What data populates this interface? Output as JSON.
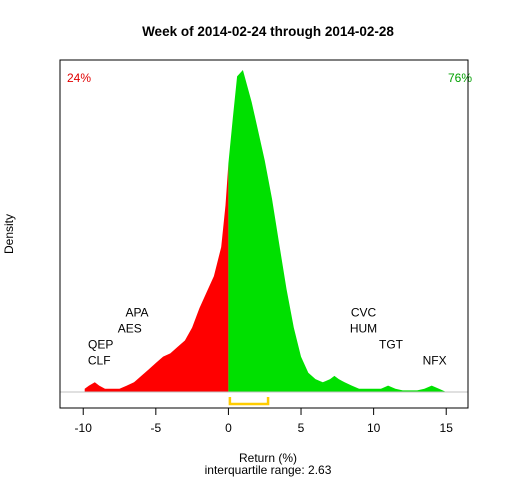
{
  "chart_data": {
    "type": "area",
    "title": "Week of 2014-02-24 through 2014-02-28",
    "xlabel": "Return (%)",
    "ylabel": "Density",
    "subtitle": "interquartile range: 2.63",
    "xlim": [
      -11.6,
      16.5
    ],
    "ylim": [
      0,
      1.06
    ],
    "x_ticks": [
      -10,
      -5,
      0,
      5,
      10,
      15
    ],
    "x_tick_labels": [
      "-10",
      "-5",
      "0",
      "5",
      "10",
      "15"
    ],
    "grid": false,
    "split_at": 0,
    "left_percent": "24%",
    "right_percent": "76%",
    "colors": {
      "negative": "#ff0000",
      "positive": "#00e000",
      "iqr": "#ffcc00",
      "baseline": "#c0c0c0"
    },
    "iqr": [
      0.1,
      2.73
    ],
    "density": {
      "x": [
        -9.9,
        -9.6,
        -9.2,
        -8.9,
        -8.5,
        -8.0,
        -7.5,
        -7.0,
        -6.5,
        -6.0,
        -5.5,
        -5.0,
        -4.5,
        -4.0,
        -3.5,
        -3.0,
        -2.5,
        -2.0,
        -1.5,
        -1.0,
        -0.5,
        -0.2,
        0.0,
        0.3,
        0.6,
        1.0,
        1.3,
        1.6,
        2.0,
        2.5,
        3.0,
        3.5,
        4.0,
        4.5,
        5.0,
        5.5,
        6.0,
        6.5,
        7.0,
        7.3,
        7.6,
        8.0,
        8.5,
        9.0,
        9.5,
        10.0,
        10.5,
        11.0,
        11.5,
        12.0,
        12.5,
        13.0,
        13.5,
        14.0,
        14.5,
        15.0
      ],
      "y": [
        0.01,
        0.02,
        0.03,
        0.02,
        0.01,
        0.01,
        0.01,
        0.02,
        0.03,
        0.05,
        0.07,
        0.09,
        0.11,
        0.12,
        0.14,
        0.16,
        0.2,
        0.26,
        0.31,
        0.36,
        0.45,
        0.58,
        0.71,
        0.85,
        0.98,
        1.0,
        0.95,
        0.9,
        0.82,
        0.72,
        0.6,
        0.46,
        0.32,
        0.2,
        0.11,
        0.06,
        0.04,
        0.03,
        0.04,
        0.05,
        0.04,
        0.03,
        0.02,
        0.01,
        0.01,
        0.01,
        0.01,
        0.02,
        0.01,
        0.005,
        0.005,
        0.005,
        0.01,
        0.02,
        0.01,
        0.0
      ]
    },
    "annotations": [
      {
        "text": "APA",
        "x": -6.3,
        "y": 0.235
      },
      {
        "text": "AES",
        "x": -6.8,
        "y": 0.185
      },
      {
        "text": "QEP",
        "x": -8.8,
        "y": 0.135
      },
      {
        "text": "CLF",
        "x": -8.9,
        "y": 0.085
      },
      {
        "text": "CVC",
        "x": 9.3,
        "y": 0.235
      },
      {
        "text": "HUM",
        "x": 9.3,
        "y": 0.185
      },
      {
        "text": "TGT",
        "x": 11.2,
        "y": 0.135
      },
      {
        "text": "NFX",
        "x": 14.2,
        "y": 0.085
      }
    ]
  }
}
